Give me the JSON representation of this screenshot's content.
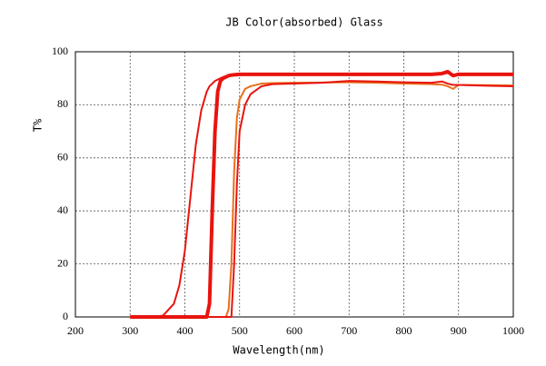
{
  "chart_data": {
    "type": "line",
    "title": "JB Color(absorbed)  Glass",
    "xlabel": "Wavelength(nm)",
    "ylabel": "T%",
    "xlim": [
      200,
      1000
    ],
    "ylim": [
      0,
      100
    ],
    "xticks": [
      200,
      300,
      400,
      500,
      600,
      700,
      800,
      900,
      1000
    ],
    "yticks": [
      0,
      20,
      40,
      60,
      80,
      100
    ],
    "grid": true,
    "x": [
      300,
      340,
      360,
      380,
      390,
      400,
      410,
      420,
      430,
      440,
      445,
      450,
      455,
      460,
      465,
      470,
      475,
      480,
      485,
      490,
      495,
      500,
      510,
      520,
      540,
      560,
      600,
      650,
      700,
      750,
      800,
      850,
      870,
      880,
      890,
      900,
      950,
      1000
    ],
    "series": [
      {
        "color": "#e8140f",
        "line_width": 2,
        "values": [
          0,
          0,
          0.5,
          5,
          12,
          25,
          45,
          65,
          78,
          85,
          87,
          88,
          89,
          89.5,
          90,
          90.5,
          90.8,
          91,
          91,
          91.2,
          91.3,
          91.4,
          91.5,
          91.5,
          91.5,
          91.5,
          91.5,
          91.5,
          91.5,
          91.5,
          91.5,
          91.5,
          91.6,
          92,
          91,
          91.5,
          91.5,
          91.5
        ]
      },
      {
        "color": "#e8140f",
        "line_width": 4,
        "values": [
          0,
          0,
          0,
          0,
          0,
          0,
          0,
          0,
          0,
          0,
          5,
          40,
          70,
          85,
          89,
          90,
          90.5,
          91,
          91.2,
          91.3,
          91.4,
          91.5,
          91.5,
          91.5,
          91.5,
          91.5,
          91.5,
          91.5,
          91.5,
          91.5,
          91.5,
          91.5,
          91.8,
          92.5,
          91,
          91.5,
          91.5,
          91.5
        ]
      },
      {
        "color": "#e8701c",
        "line_width": 2,
        "values": [
          0,
          0,
          0,
          0,
          0,
          0,
          0,
          0,
          0,
          0,
          0,
          0,
          0,
          0,
          0,
          0,
          0,
          3,
          20,
          55,
          75,
          82,
          86,
          87,
          88,
          88.2,
          88.3,
          88.4,
          88.5,
          88.3,
          88,
          87.8,
          87.6,
          87,
          86,
          87.5,
          87.4,
          87.3
        ]
      },
      {
        "color": "#e8140f",
        "line_width": 2,
        "values": [
          0,
          0,
          0,
          0,
          0,
          0,
          0,
          0,
          0,
          0,
          0,
          0,
          0,
          0,
          0,
          0,
          0,
          0,
          0,
          20,
          50,
          70,
          80,
          84,
          87,
          87.8,
          88,
          88.3,
          89,
          88.8,
          88.5,
          88.3,
          88.8,
          88,
          87.5,
          87.5,
          87.2,
          87
        ]
      }
    ]
  }
}
